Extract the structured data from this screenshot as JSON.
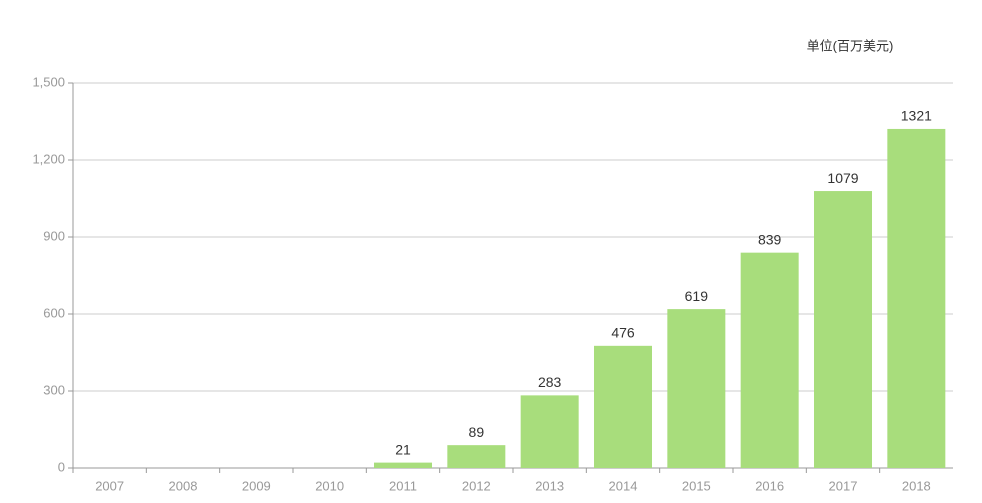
{
  "chart_data": {
    "type": "bar",
    "subtitle": "单位(百万美元)",
    "categories": [
      "2007",
      "2008",
      "2009",
      "2010",
      "2011",
      "2012",
      "2013",
      "2014",
      "2015",
      "2016",
      "2017",
      "2018"
    ],
    "values": [
      null,
      null,
      null,
      null,
      21,
      89,
      283,
      476,
      619,
      839,
      1079,
      1321
    ],
    "color": "#a8dd7c",
    "ylim": [
      0,
      1500
    ],
    "yticks": [
      0,
      300,
      600,
      900,
      {
        "value": 1200,
        "label": "1,200"
      },
      {
        "value": 1500,
        "label": "1,500"
      }
    ],
    "grid": true
  }
}
